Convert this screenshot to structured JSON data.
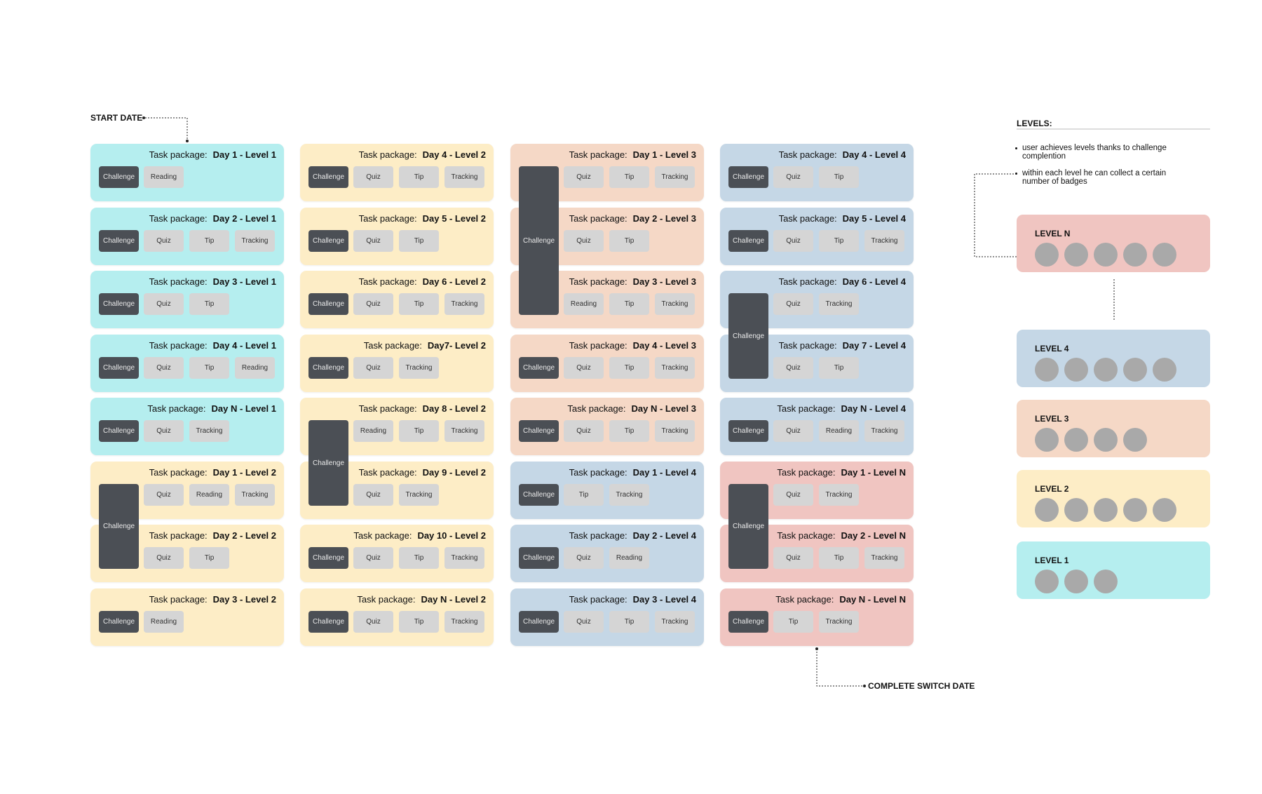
{
  "colors": {
    "level1": "#b5eeef",
    "level2": "#fdedc6",
    "level3": "#f5d8c6",
    "level4": "#c5d7e6",
    "levelN": "#f0c5c1",
    "challenge": "#4b4f55",
    "task": "#d5d5d5",
    "badge": "#a9a9a9"
  },
  "labels": {
    "start_date": "START DATE",
    "complete_switch_date": "COMPLETE SWITCH DATE",
    "task_package": "Task package:",
    "challenge": "Challenge"
  },
  "legend": {
    "title": "LEVELS:",
    "notes": [
      "user achieves levels thanks to challenge complention",
      "within each level he can collect a certain number of badges"
    ]
  },
  "columns": [
    [
      {
        "title": "Day 1 - Level 1",
        "level": "level1",
        "tasks": [
          "Reading"
        ]
      },
      {
        "title": "Day 2 - Level 1",
        "level": "level1",
        "tasks": [
          "Quiz",
          "Tip",
          "Tracking"
        ]
      },
      {
        "title": "Day 3 - Level 1",
        "level": "level1",
        "tasks": [
          "Quiz",
          "Tip"
        ]
      },
      {
        "title": "Day 4 - Level 1",
        "level": "level1",
        "tasks": [
          "Quiz",
          "Tip",
          "Reading"
        ]
      },
      {
        "title": "Day N - Level 1",
        "level": "level1",
        "tasks": [
          "Quiz",
          "Tracking"
        ]
      },
      {
        "title": "Day 1 - Level 2",
        "level": "level2",
        "tasks": [
          "Quiz",
          "Reading",
          "Tracking"
        ],
        "merged": "start"
      },
      {
        "title": "Day 2 - Level 2",
        "level": "level2",
        "tasks": [
          "Quiz",
          "Tip"
        ],
        "merged": "end"
      },
      {
        "title": "Day 3 - Level 2",
        "level": "level2",
        "tasks": [
          "Reading"
        ]
      }
    ],
    [
      {
        "title": "Day 4 - Level 2",
        "level": "level2",
        "tasks": [
          "Quiz",
          "Tip",
          "Tracking"
        ]
      },
      {
        "title": "Day 5 - Level 2",
        "level": "level2",
        "tasks": [
          "Quiz",
          "Tip"
        ]
      },
      {
        "title": "Day 6 - Level 2",
        "level": "level2",
        "tasks": [
          "Quiz",
          "Tip",
          "Tracking"
        ]
      },
      {
        "title": "Day7- Level 2",
        "level": "level2",
        "tasks": [
          "Quiz",
          "Tracking"
        ]
      },
      {
        "title": "Day 8 - Level 2",
        "level": "level2",
        "tasks": [
          "Reading",
          "Tip",
          "Tracking"
        ],
        "merged": "start"
      },
      {
        "title": "Day 9 - Level 2",
        "level": "level2",
        "tasks": [
          "Quiz",
          "Tracking"
        ],
        "merged": "end"
      },
      {
        "title": "Day 10 - Level 2",
        "level": "level2",
        "tasks": [
          "Quiz",
          "Tip",
          "Tracking"
        ]
      },
      {
        "title": "Day N - Level 2",
        "level": "level2",
        "tasks": [
          "Quiz",
          "Tip",
          "Tracking"
        ]
      }
    ],
    [
      {
        "title": "Day 1 - Level 3",
        "level": "level3",
        "tasks": [
          "Quiz",
          "Tip",
          "Tracking"
        ],
        "merged": "start"
      },
      {
        "title": "Day 2 - Level 3",
        "level": "level3",
        "tasks": [
          "Quiz",
          "Tip"
        ],
        "merged": "mid"
      },
      {
        "title": "Day 3 - Level 3",
        "level": "level3",
        "tasks": [
          "Reading",
          "Tip",
          "Tracking"
        ],
        "merged": "end"
      },
      {
        "title": "Day 4 - Level 3",
        "level": "level3",
        "tasks": [
          "Quiz",
          "Tip",
          "Tracking"
        ]
      },
      {
        "title": "Day N - Level 3",
        "level": "level3",
        "tasks": [
          "Quiz",
          "Tip",
          "Tracking"
        ]
      },
      {
        "title": "Day 1 - Level 4",
        "level": "level4",
        "tasks": [
          "Tip",
          "Tracking"
        ]
      },
      {
        "title": "Day 2 - Level 4",
        "level": "level4",
        "tasks": [
          "Quiz",
          "Reading"
        ]
      },
      {
        "title": "Day 3 - Level 4",
        "level": "level4",
        "tasks": [
          "Quiz",
          "Tip",
          "Tracking"
        ]
      }
    ],
    [
      {
        "title": "Day 4 - Level 4",
        "level": "level4",
        "tasks": [
          "Quiz",
          "Tip"
        ]
      },
      {
        "title": "Day 5 - Level 4",
        "level": "level4",
        "tasks": [
          "Quiz",
          "Tip",
          "Tracking"
        ]
      },
      {
        "title": "Day 6 - Level 4",
        "level": "level4",
        "tasks": [
          "Quiz",
          "Tracking"
        ],
        "merged": "start"
      },
      {
        "title": "Day 7 - Level 4",
        "level": "level4",
        "tasks": [
          "Quiz",
          "Tip"
        ],
        "merged": "end"
      },
      {
        "title": "Day N - Level 4",
        "level": "level4",
        "tasks": [
          "Quiz",
          "Reading",
          "Tracking"
        ]
      },
      {
        "title": "Day 1 - Level N",
        "level": "levelN",
        "tasks": [
          "Quiz",
          "Tracking"
        ],
        "merged": "start"
      },
      {
        "title": "Day 2 - Level N",
        "level": "levelN",
        "tasks": [
          "Quiz",
          "Tip",
          "Tracking"
        ],
        "merged": "end"
      },
      {
        "title": "Day N - Level N",
        "level": "levelN",
        "tasks": [
          "Tip",
          "Tracking"
        ]
      }
    ]
  ],
  "levels": [
    {
      "name": "LEVEL N",
      "level": "levelN",
      "badges": 5
    },
    {
      "name": "LEVEL 4",
      "level": "level4",
      "badges": 5
    },
    {
      "name": "LEVEL 3",
      "level": "level3",
      "badges": 4
    },
    {
      "name": "LEVEL 2",
      "level": "level2",
      "badges": 5
    },
    {
      "name": "LEVEL 1",
      "level": "level1",
      "badges": 3
    }
  ]
}
